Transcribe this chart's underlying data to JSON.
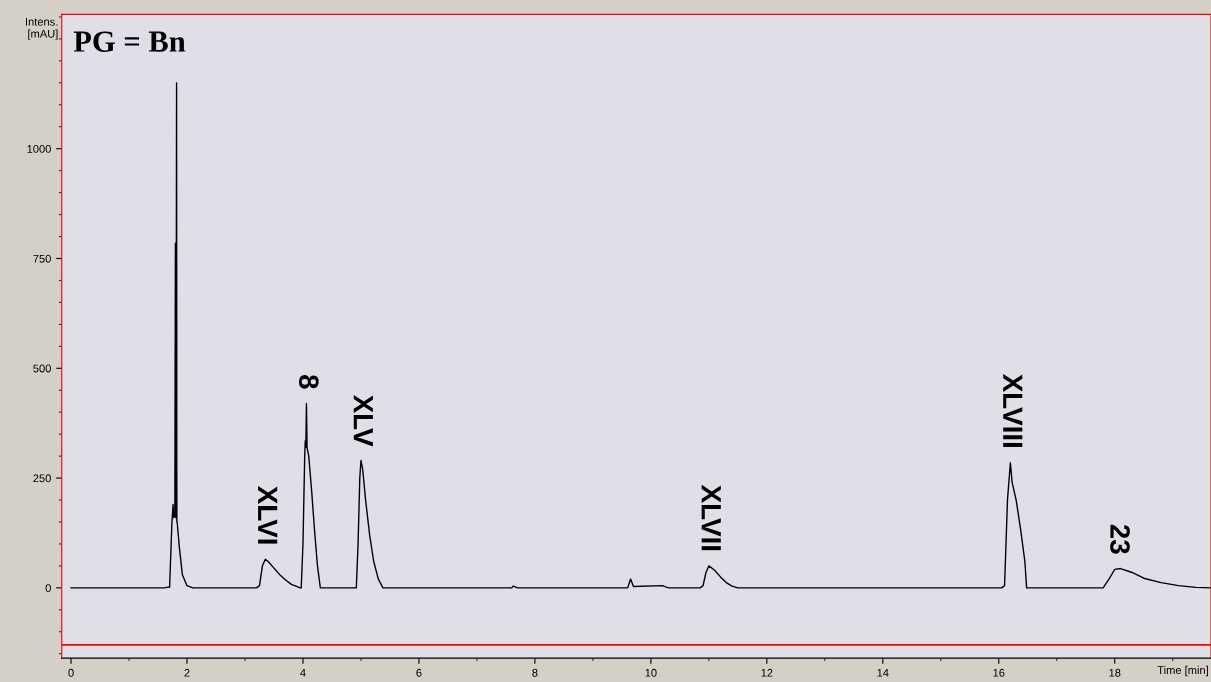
{
  "chart_data": {
    "type": "line",
    "xlabel": "Time [min]",
    "ylabel": "Intens. [mAU]",
    "xlim": [
      -0.16,
      19.66
    ],
    "ylim": [
      -160,
      1306
    ],
    "xticks": [
      0,
      2,
      4,
      6,
      8,
      10,
      12,
      14,
      16,
      18
    ],
    "yticks": [
      0,
      250,
      500,
      750,
      1000
    ],
    "grid": false,
    "marker": "none",
    "line_style": "solid",
    "ref_lines": [
      {
        "axis": "y",
        "value": -130,
        "color": "#ff0000"
      }
    ],
    "annotations": [
      "PG = Bn",
      {
        "text": "XLVI",
        "x": 3.35,
        "y": 65
      },
      {
        "text": "8",
        "x": 4.06,
        "y": 420
      },
      {
        "text": "XLV",
        "x": 5.0,
        "y": 290
      },
      {
        "text": "XLVII",
        "x": 11.0,
        "y": 50
      },
      {
        "text": "XLVIII",
        "x": 16.2,
        "y": 285
      },
      {
        "text": "23",
        "x": 18.05,
        "y": 44
      }
    ],
    "series": [
      {
        "color": "#000000",
        "x": [
          0.0,
          1.0,
          1.6,
          1.7,
          1.74,
          1.76,
          1.77,
          1.79,
          1.8,
          1.805,
          1.81,
          1.82,
          1.825,
          1.83,
          1.87,
          1.92,
          2.0,
          2.1,
          3.2,
          3.25,
          3.3,
          3.35,
          3.4,
          3.5,
          3.6,
          3.7,
          3.8,
          3.9,
          3.95,
          3.97,
          4.0,
          4.03,
          4.04,
          4.05,
          4.06,
          4.07,
          4.1,
          4.15,
          4.2,
          4.25,
          4.3,
          4.92,
          4.95,
          4.98,
          5.0,
          5.03,
          5.08,
          5.15,
          5.22,
          5.3,
          5.38,
          6.0,
          7.6,
          7.63,
          7.7,
          9.6,
          9.65,
          9.7,
          10.2,
          10.3,
          10.85,
          10.9,
          10.95,
          11.0,
          11.1,
          11.2,
          11.3,
          11.4,
          11.5,
          16.05,
          16.1,
          16.15,
          16.2,
          16.23,
          16.3,
          16.38,
          16.45,
          16.48,
          17.8,
          17.9,
          18.0,
          18.1,
          18.3,
          18.5,
          18.8,
          19.1,
          19.4,
          19.66
        ],
        "values": [
          0,
          0,
          0,
          2,
          150,
          190,
          160,
          165,
          785,
          160,
          160,
          1150,
          150,
          150,
          90,
          30,
          5,
          0,
          0,
          5,
          50,
          65,
          60,
          45,
          30,
          18,
          8,
          3,
          0,
          0,
          100,
          300,
          335,
          320,
          420,
          320,
          300,
          220,
          130,
          50,
          0,
          0,
          100,
          250,
          290,
          270,
          200,
          120,
          60,
          20,
          0,
          0,
          0,
          4,
          0,
          0,
          20,
          3,
          5,
          0,
          0,
          5,
          35,
          50,
          40,
          25,
          12,
          4,
          0,
          0,
          5,
          200,
          285,
          240,
          200,
          130,
          60,
          0,
          0,
          20,
          42,
          44,
          35,
          22,
          12,
          5,
          1,
          0
        ]
      }
    ]
  }
}
